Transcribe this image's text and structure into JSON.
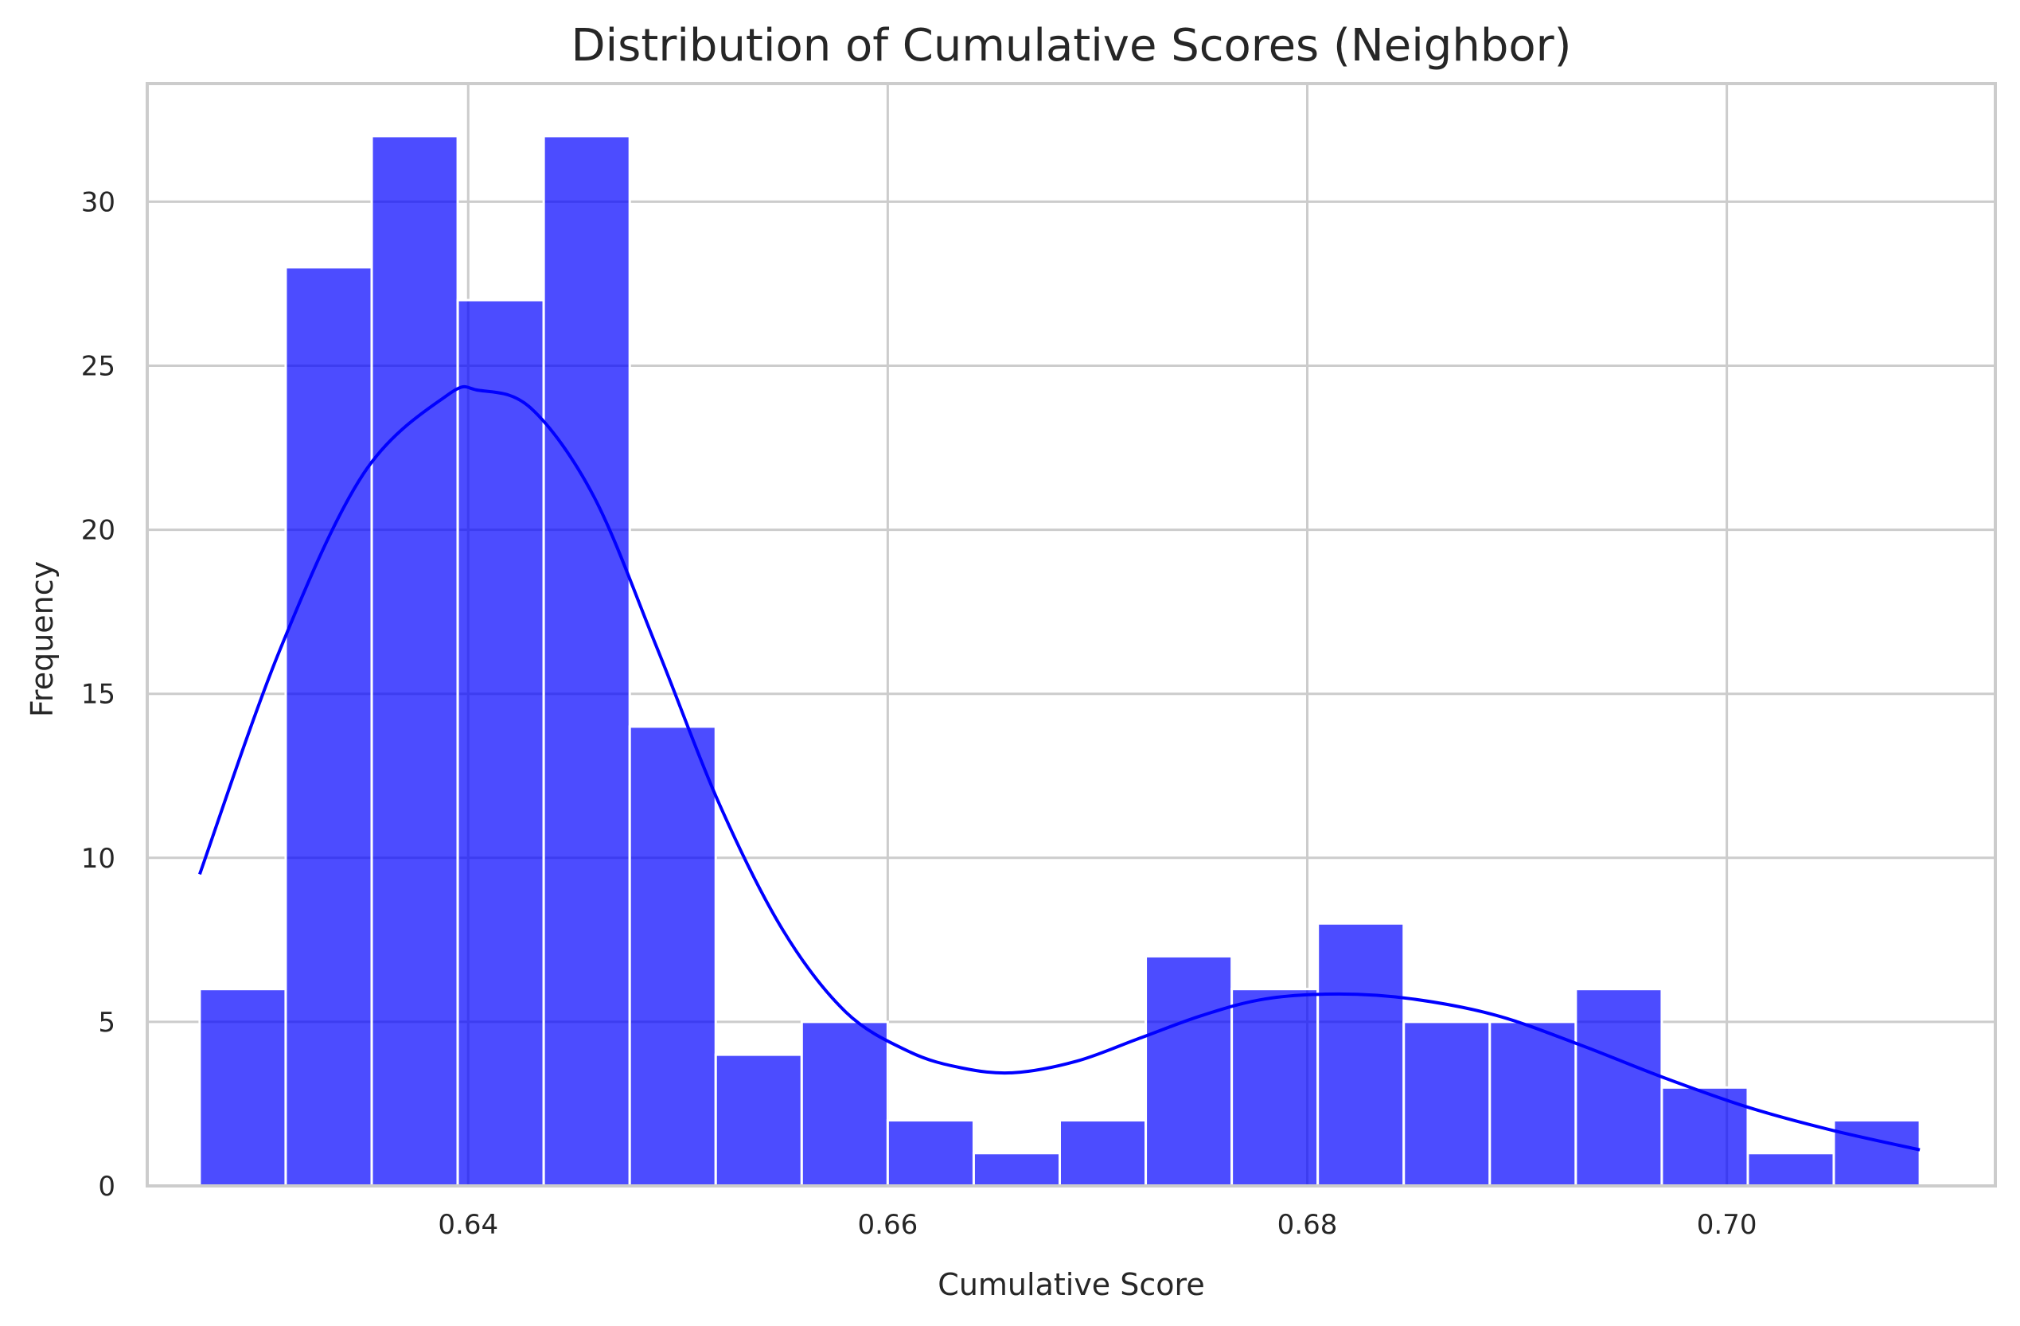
{
  "chart_data": {
    "type": "bar",
    "subtype": "histogram-with-kde",
    "title": "Distribution of Cumulative Scores (Neighbor)",
    "xlabel": "Cumulative Score",
    "ylabel": "Frequency",
    "xlim": [
      0.6247,
      0.7128
    ],
    "ylim": [
      0,
      33.6
    ],
    "xticks": [
      0.64,
      0.66,
      0.68,
      0.7
    ],
    "xtick_labels": [
      "0.64",
      "0.66",
      "0.68",
      "0.70"
    ],
    "yticks": [
      0,
      5,
      10,
      15,
      20,
      25,
      30
    ],
    "ytick_labels": [
      "0",
      "5",
      "10",
      "15",
      "20",
      "25",
      "30"
    ],
    "grid": true,
    "bin_edges": [
      0.6272,
      0.6313,
      0.6354,
      0.6395,
      0.6436,
      0.6477,
      0.6518,
      0.6559,
      0.66,
      0.6641,
      0.6682,
      0.6723,
      0.6764,
      0.6805,
      0.6846,
      0.6887,
      0.6928,
      0.6969,
      0.701,
      0.7051,
      0.7092
    ],
    "values": [
      6,
      28,
      32,
      27,
      32,
      14,
      4,
      5,
      2,
      1,
      2,
      7,
      6,
      8,
      5,
      5,
      6,
      3,
      1,
      2
    ],
    "bar_color": "#0000ff",
    "bar_opacity": 0.7,
    "kde": {
      "color": "#0000ff",
      "x": [
        0.6272,
        0.631,
        0.635,
        0.639,
        0.6405,
        0.643,
        0.646,
        0.649,
        0.652,
        0.655,
        0.658,
        0.661,
        0.6635,
        0.666,
        0.669,
        0.672,
        0.675,
        0.678,
        0.6815,
        0.685,
        0.689,
        0.693,
        0.697,
        0.701,
        0.705,
        0.7092
      ],
      "y": [
        9.5,
        16.3,
        21.7,
        24.1,
        24.25,
        23.7,
        21.0,
        16.4,
        11.6,
        7.8,
        5.3,
        4.1,
        3.6,
        3.45,
        3.8,
        4.5,
        5.2,
        5.7,
        5.85,
        5.7,
        5.2,
        4.3,
        3.3,
        2.4,
        1.7,
        1.1
      ]
    }
  }
}
